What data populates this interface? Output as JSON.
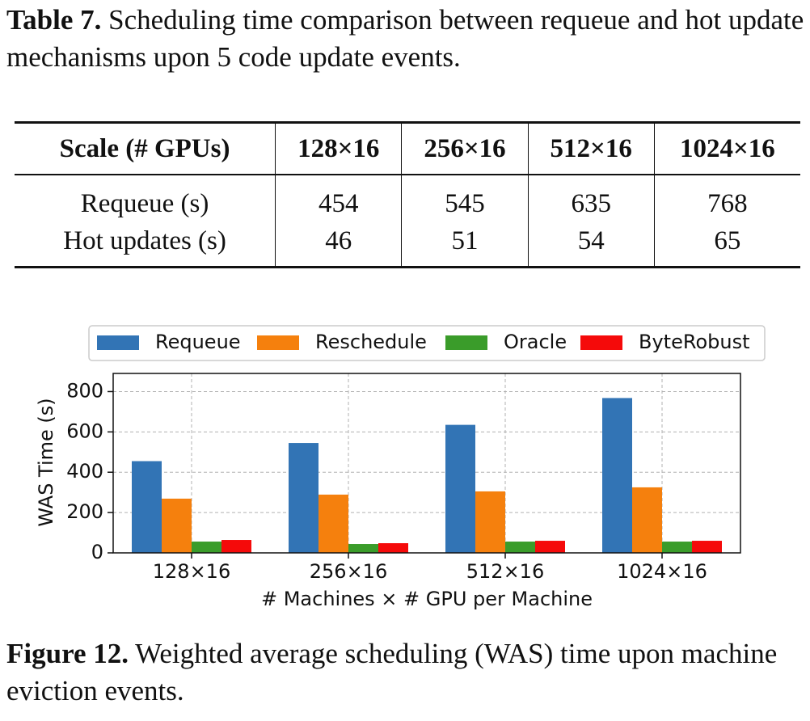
{
  "table_caption": {
    "label": "Table 7.",
    "text": "Scheduling time comparison between requeue and hot update mechanisms upon 5 code update events."
  },
  "table": {
    "header": [
      "Scale (# GPUs)",
      "128×16",
      "256×16",
      "512×16",
      "1024×16"
    ],
    "rows": [
      [
        "Requeue (s)",
        454,
        545,
        635,
        768
      ],
      [
        "Hot updates (s)",
        46,
        51,
        54,
        65
      ]
    ]
  },
  "chart_data": {
    "type": "bar",
    "y_label": "WAS Time (s)",
    "x_label": "# Machines × # GPU per Machine",
    "categories": [
      "128×16",
      "256×16",
      "512×16",
      "1024×16"
    ],
    "series": [
      {
        "name": "Requeue",
        "color": "#3274b5",
        "values": [
          455,
          545,
          635,
          768
        ]
      },
      {
        "name": "Reschedule",
        "color": "#f5800d",
        "values": [
          269,
          289,
          305,
          325
        ]
      },
      {
        "name": "Oracle",
        "color": "#3a9c2a",
        "values": [
          56,
          44,
          56,
          56
        ]
      },
      {
        "name": "ByteRobust",
        "color": "#f50a0a",
        "values": [
          64,
          48,
          60,
          60
        ]
      }
    ],
    "ylim": [
      0,
      890
    ],
    "yticks": [
      0,
      200,
      400,
      600,
      800
    ],
    "grid": true,
    "legend": "top"
  },
  "figure_caption": {
    "label": "Figure 12.",
    "text": "Weighted average scheduling (WAS) time upon machine eviction events."
  }
}
